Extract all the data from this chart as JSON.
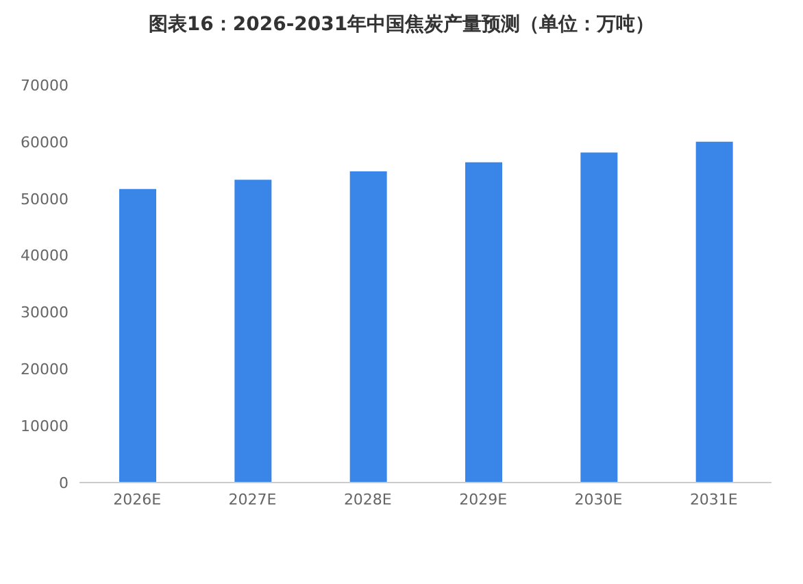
{
  "chart_data": {
    "type": "bar",
    "title": "图表16：2026-2031年中国焦炭产量预测（单位：万吨）",
    "categories": [
      "2026E",
      "2027E",
      "2028E",
      "2029E",
      "2030E",
      "2031E"
    ],
    "values": [
      51700,
      53300,
      54800,
      56400,
      58100,
      60000
    ],
    "color": "#3a86e8",
    "ylim": [
      0,
      70000
    ],
    "yticks": [
      0,
      10000,
      20000,
      30000,
      40000,
      50000,
      60000,
      70000
    ]
  }
}
